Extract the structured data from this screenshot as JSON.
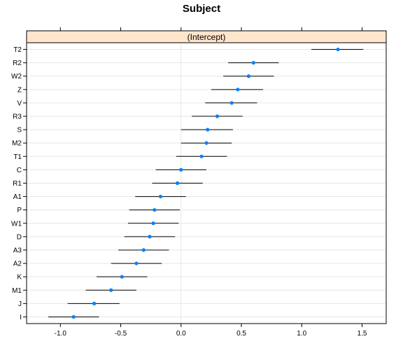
{
  "chart_data": {
    "type": "dotplot-intervals",
    "title": "Subject",
    "panel_label": "(Intercept)",
    "xlim": [
      -1.28,
      1.7
    ],
    "x_ticks": [
      -1.0,
      -0.5,
      0.0,
      0.5,
      1.0,
      1.5
    ],
    "x_tick_labels": [
      "-1.0",
      "-0.5",
      "0.0",
      "0.5",
      "1.0",
      "1.5"
    ],
    "reference_line": 0.0,
    "grid": true,
    "point_color": "#0080ff",
    "strip_color": "#ffe5cc",
    "categories": [
      "T2",
      "R2",
      "W2",
      "Z",
      "V",
      "R3",
      "S",
      "M2",
      "T1",
      "C",
      "R1",
      "A1",
      "P",
      "W1",
      "D",
      "A3",
      "A2",
      "K",
      "M1",
      "J",
      "I"
    ],
    "values": [
      1.3,
      0.6,
      0.56,
      0.47,
      0.42,
      0.3,
      0.22,
      0.21,
      0.17,
      0.0,
      -0.03,
      -0.17,
      -0.22,
      -0.23,
      -0.26,
      -0.31,
      -0.37,
      -0.49,
      -0.58,
      -0.72,
      -0.89
    ],
    "lower": [
      1.08,
      0.39,
      0.35,
      0.25,
      0.2,
      0.09,
      0.0,
      0.0,
      -0.04,
      -0.21,
      -0.24,
      -0.38,
      -0.43,
      -0.44,
      -0.47,
      -0.52,
      -0.58,
      -0.7,
      -0.79,
      -0.94,
      -1.1
    ],
    "upper": [
      1.51,
      0.81,
      0.77,
      0.68,
      0.63,
      0.51,
      0.43,
      0.42,
      0.38,
      0.21,
      0.18,
      0.04,
      -0.01,
      -0.02,
      -0.05,
      -0.1,
      -0.16,
      -0.28,
      -0.37,
      -0.51,
      -0.68
    ]
  }
}
